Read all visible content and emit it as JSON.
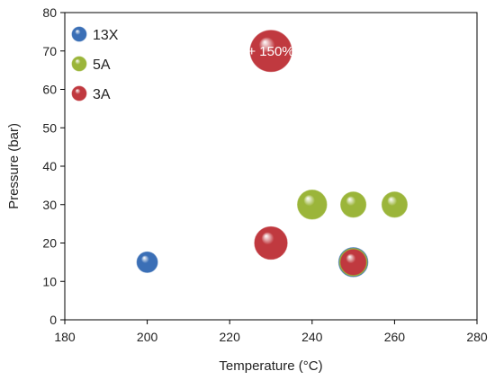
{
  "chart_data": {
    "type": "scatter",
    "title": "",
    "xlabel": "Temperature (°C)",
    "ylabel": "Pressure (bar)",
    "xlim": [
      180,
      280
    ],
    "ylim": [
      0,
      80
    ],
    "xticks": [
      180,
      200,
      220,
      240,
      260,
      280
    ],
    "yticks": [
      0,
      10,
      20,
      30,
      40,
      50,
      60,
      70,
      80
    ],
    "grid": false,
    "legend_position": "top-left",
    "series": [
      {
        "name": "13X",
        "color": "#3b6fb6",
        "points": [
          {
            "x": 200,
            "y": 15,
            "size": 1
          },
          {
            "x": 250,
            "y": 15,
            "size": 2
          }
        ]
      },
      {
        "name": "5A",
        "color": "#9bb53a",
        "points": [
          {
            "x": 240,
            "y": 30,
            "size": 2
          },
          {
            "x": 250,
            "y": 30,
            "size": 1.5
          },
          {
            "x": 260,
            "y": 30,
            "size": 1.5
          },
          {
            "x": 250,
            "y": 15,
            "size": 1.8
          }
        ]
      },
      {
        "name": "3A",
        "color": "#c0393f",
        "points": [
          {
            "x": 230,
            "y": 70,
            "size": 4,
            "label": "+ 150%"
          },
          {
            "x": 230,
            "y": 20,
            "size": 2.5
          },
          {
            "x": 250,
            "y": 15,
            "size": 1.5
          }
        ]
      }
    ]
  }
}
